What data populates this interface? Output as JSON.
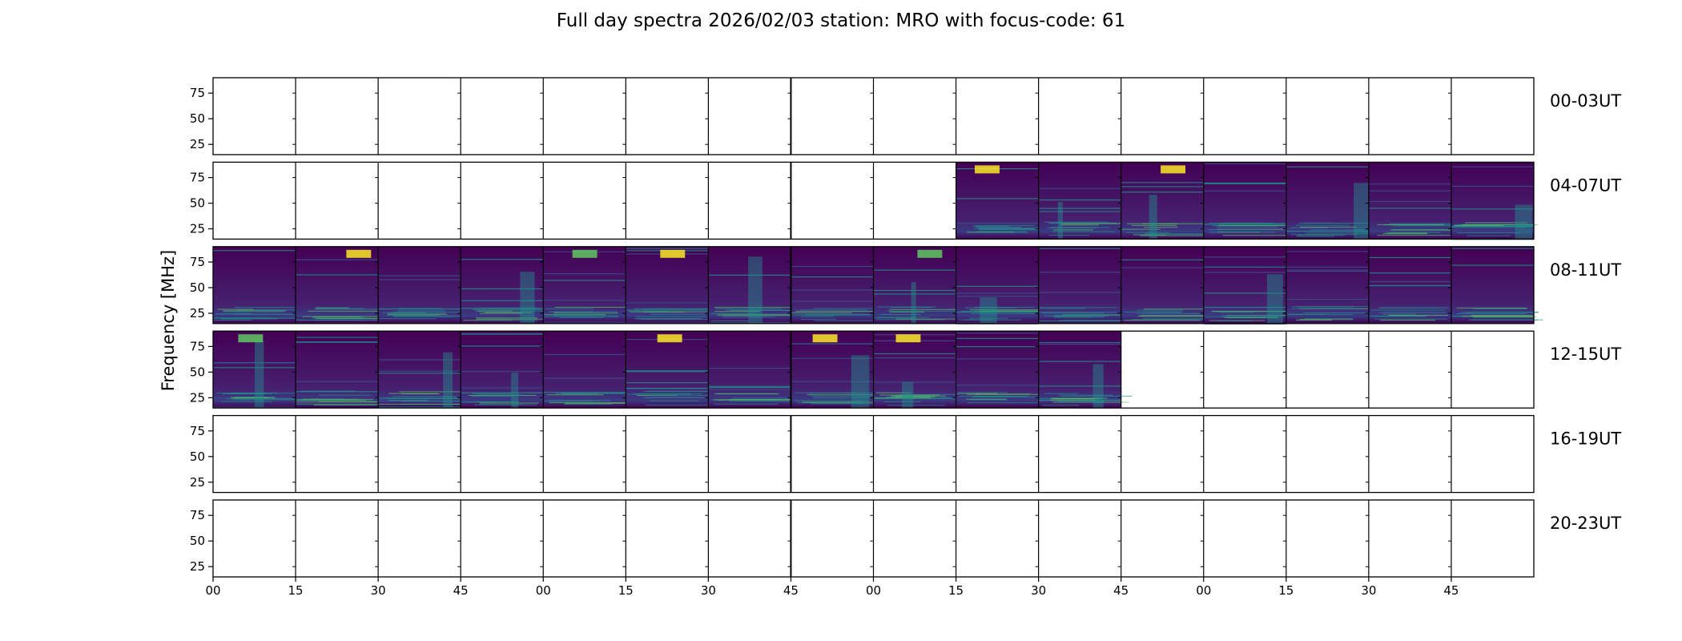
{
  "chart_data": {
    "type": "heatmap",
    "title": "Full day spectra 2026/02/03 station: MRO with focus-code: 61",
    "ylabel": "Frequency [MHz]",
    "yticks": [
      "75",
      "50",
      "25"
    ],
    "ylim": [
      15,
      90
    ],
    "xticks": [
      "00",
      "15",
      "30",
      "45",
      "00",
      "15",
      "30",
      "45",
      "00",
      "15",
      "30",
      "45",
      "00",
      "15",
      "30",
      "45"
    ],
    "colormap": [
      "#440154",
      "#3b528b",
      "#21918c",
      "#5ec962",
      "#fde725"
    ],
    "rows": [
      {
        "label": "00-03UT",
        "filled": [
          false,
          false,
          false,
          false,
          false,
          false,
          false,
          false,
          false,
          false,
          false,
          false,
          false,
          false,
          false,
          false
        ]
      },
      {
        "label": "04-07UT",
        "filled": [
          false,
          false,
          false,
          false,
          false,
          false,
          false,
          false,
          false,
          true,
          true,
          true,
          true,
          true,
          true,
          true
        ]
      },
      {
        "label": "08-11UT",
        "filled": [
          true,
          true,
          true,
          true,
          true,
          true,
          true,
          true,
          true,
          true,
          true,
          true,
          true,
          true,
          true,
          true
        ]
      },
      {
        "label": "12-15UT",
        "filled": [
          true,
          true,
          true,
          true,
          true,
          true,
          true,
          true,
          true,
          true,
          true,
          false,
          false,
          false,
          false,
          false
        ]
      },
      {
        "label": "16-19UT",
        "filled": [
          false,
          false,
          false,
          false,
          false,
          false,
          false,
          false,
          false,
          false,
          false,
          false,
          false,
          false,
          false,
          false
        ]
      },
      {
        "label": "20-23UT",
        "filled": [
          false,
          false,
          false,
          false,
          false,
          false,
          false,
          false,
          false,
          false,
          false,
          false,
          false,
          false,
          false,
          false
        ]
      }
    ]
  }
}
